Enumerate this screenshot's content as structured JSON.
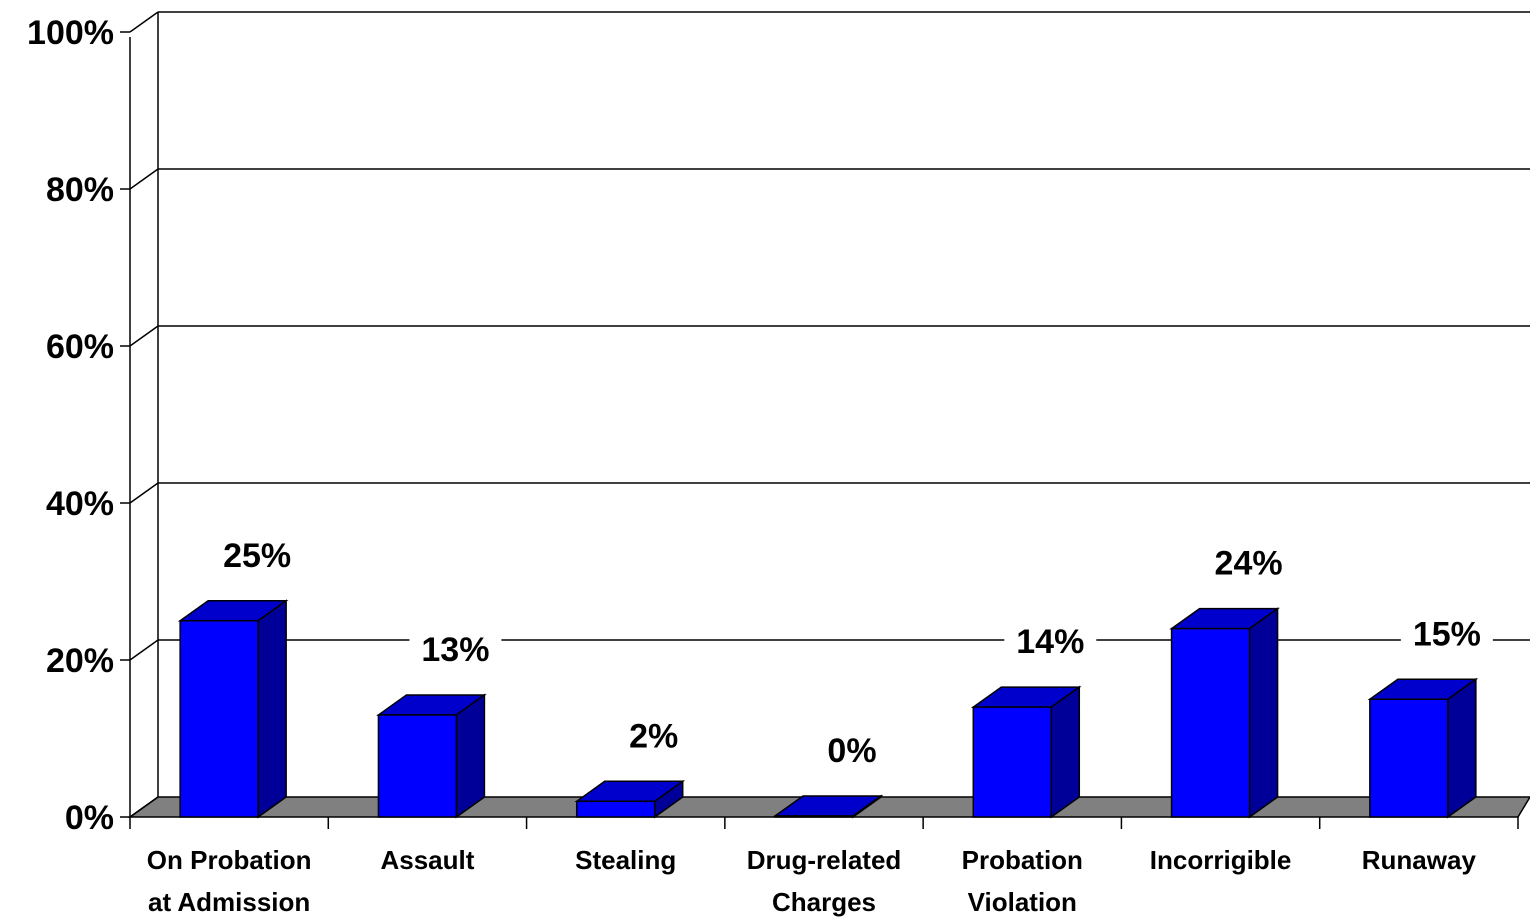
{
  "chart_data": {
    "type": "bar",
    "style": "3d",
    "categories": [
      [
        "On Probation",
        "at Admission"
      ],
      [
        "Assault"
      ],
      [
        "Stealing"
      ],
      [
        "Drug-related",
        "Charges"
      ],
      [
        "Probation",
        "Violation"
      ],
      [
        "Incorrigible"
      ],
      [
        "Runaway"
      ]
    ],
    "values": [
      25,
      13,
      2,
      0,
      14,
      24,
      15
    ],
    "data_labels": [
      "25%",
      "13%",
      "2%",
      "0%",
      "14%",
      "24%",
      "15%"
    ],
    "y_ticks": [
      "0%",
      "20%",
      "40%",
      "60%",
      "80%",
      "100%"
    ],
    "ylim": [
      0,
      100
    ],
    "grid": true,
    "title": "",
    "xlabel": "",
    "ylabel": ""
  },
  "colors": {
    "bar_front": "#0000ff",
    "bar_top": "#0000cc",
    "bar_side": "#000099",
    "floor": "#808080",
    "grid": "#000000"
  }
}
